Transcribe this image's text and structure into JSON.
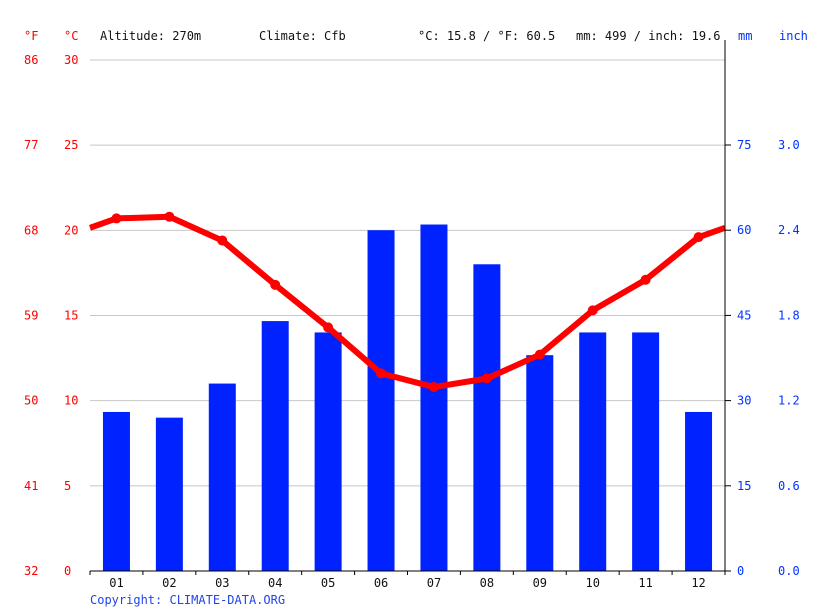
{
  "header": {
    "unit_f": "°F",
    "unit_c": "°C",
    "altitude": "Altitude: 270m",
    "climate": "Climate: Cfb",
    "temp_summary": "°C: 15.8 / °F: 60.5",
    "precip_summary": "mm: 499 / inch: 19.6",
    "unit_mm": "mm",
    "unit_inch": "inch"
  },
  "footer": {
    "copyright": "Copyright: CLIMATE-DATA.ORG"
  },
  "axes": {
    "left_f": [
      "32",
      "41",
      "50",
      "59",
      "68",
      "77",
      "86"
    ],
    "left_c": [
      "0",
      "5",
      "10",
      "15",
      "20",
      "25",
      "30"
    ],
    "right_mm": [
      "0",
      "15",
      "30",
      "45",
      "60",
      "75"
    ],
    "right_inch": [
      "0.0",
      "0.6",
      "1.2",
      "1.8",
      "2.4",
      "3.0"
    ]
  },
  "colors": {
    "temperature": "#ff0000",
    "precipitation": "#0022ff",
    "grid": "#c8c8c8"
  },
  "chart_data": {
    "type": "bar+line",
    "title": "",
    "categories": [
      "01",
      "02",
      "03",
      "04",
      "05",
      "06",
      "07",
      "08",
      "09",
      "10",
      "11",
      "12"
    ],
    "series": [
      {
        "name": "Precipitation (mm)",
        "type": "bar",
        "axis": "right",
        "values": [
          28,
          27,
          33,
          44,
          42,
          60,
          61,
          54,
          38,
          42,
          42,
          28
        ]
      },
      {
        "name": "Temperature (°C)",
        "type": "line",
        "axis": "left",
        "values": [
          20.7,
          20.8,
          19.4,
          16.8,
          14.3,
          11.6,
          10.8,
          11.3,
          12.7,
          15.3,
          17.1,
          19.6
        ]
      }
    ],
    "left_axis": {
      "label": "°C",
      "range": [
        0,
        30
      ],
      "ticks": [
        0,
        5,
        10,
        15,
        20,
        25,
        30
      ]
    },
    "left_axis_f": {
      "label": "°F",
      "ticks": [
        32,
        41,
        50,
        59,
        68,
        77,
        86
      ]
    },
    "right_axis": {
      "label": "mm",
      "range": [
        0,
        90
      ],
      "ticks": [
        0,
        15,
        30,
        45,
        60,
        75
      ]
    },
    "right_axis_inch": {
      "label": "inch",
      "ticks": [
        0.0,
        0.6,
        1.2,
        1.8,
        2.4,
        3.0
      ]
    },
    "grid": true,
    "annotations": [
      "Altitude: 270m",
      "Climate: Cfb",
      "°C: 15.8 / °F: 60.5",
      "mm: 499 / inch: 19.6"
    ]
  }
}
